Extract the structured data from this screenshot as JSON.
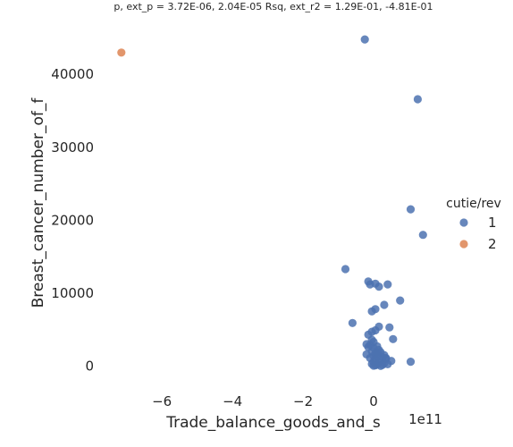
{
  "chart_data": {
    "type": "scatter",
    "title": "p, ext_p = 3.72E-06, 2.04E-05 Rsq, ext_r2 = 1.29E-01, -4.81E-01",
    "xlabel": "Trade_balance_goods_and_s",
    "ylabel": "Breast_cancer_number_of_f",
    "x_offset_label": "1e11",
    "x_ticks": [
      -6,
      -4,
      -2,
      0
    ],
    "x_tick_labels": [
      "−6",
      "−4",
      "−2",
      "0"
    ],
    "y_ticks": [
      0,
      10000,
      20000,
      30000,
      40000
    ],
    "y_tick_labels": [
      "0",
      "10000",
      "20000",
      "30000",
      "40000"
    ],
    "xlim": [
      -7.6,
      2.0
    ],
    "ylim": [
      -3500,
      48000
    ],
    "grid": false,
    "legend": {
      "title": "cutie/rev",
      "placement": "right"
    },
    "series": [
      {
        "name": "1",
        "color": "#4c72b0",
        "points": [
          [
            -0.25,
            44800
          ],
          [
            1.25,
            36600
          ],
          [
            1.05,
            21500
          ],
          [
            1.4,
            18000
          ],
          [
            -0.8,
            13300
          ],
          [
            -0.15,
            11600
          ],
          [
            -0.1,
            11200
          ],
          [
            0.05,
            11300
          ],
          [
            0.4,
            11200
          ],
          [
            0.15,
            10900
          ],
          [
            0.75,
            9000
          ],
          [
            0.3,
            8400
          ],
          [
            0.05,
            7800
          ],
          [
            -0.05,
            7500
          ],
          [
            -0.6,
            5900
          ],
          [
            0.15,
            5400
          ],
          [
            0.45,
            5300
          ],
          [
            0.05,
            4900
          ],
          [
            -0.05,
            4700
          ],
          [
            -0.15,
            4300
          ],
          [
            0.55,
            3700
          ],
          [
            -0.05,
            3600
          ],
          [
            0.0,
            3300
          ],
          [
            -0.2,
            3000
          ],
          [
            -0.1,
            2900
          ],
          [
            0.1,
            2700
          ],
          [
            0.0,
            2500
          ],
          [
            0.15,
            2200
          ],
          [
            -0.05,
            2000
          ],
          [
            0.2,
            1900
          ],
          [
            0.05,
            1700
          ],
          [
            -0.2,
            1600
          ],
          [
            0.3,
            1500
          ],
          [
            0.0,
            1400
          ],
          [
            0.1,
            1300
          ],
          [
            0.25,
            1200
          ],
          [
            -0.1,
            1100
          ],
          [
            0.35,
            1000
          ],
          [
            0.05,
            900
          ],
          [
            0.2,
            800
          ],
          [
            0.5,
            700
          ],
          [
            0.0,
            600
          ],
          [
            0.15,
            500
          ],
          [
            0.3,
            400
          ],
          [
            -0.05,
            300
          ],
          [
            0.1,
            200
          ],
          [
            0.25,
            150
          ],
          [
            0.05,
            100
          ],
          [
            0.4,
            250
          ],
          [
            0.0,
            50
          ],
          [
            0.2,
            20
          ],
          [
            1.05,
            600
          ],
          [
            0.1,
            1800
          ],
          [
            -0.15,
            2600
          ],
          [
            0.35,
            1100
          ]
        ]
      },
      {
        "name": "2",
        "color": "#dd8452",
        "points": [
          [
            -7.15,
            43000
          ]
        ]
      }
    ]
  }
}
